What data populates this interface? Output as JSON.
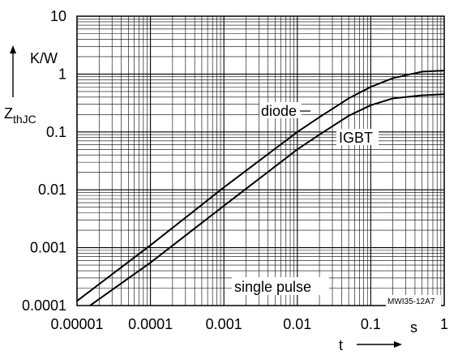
{
  "chart_data": {
    "type": "line",
    "x_scale": "log",
    "y_scale": "log",
    "xlim": [
      1e-05,
      1
    ],
    "ylim": [
      0.0001,
      10
    ],
    "grid": true,
    "xlabel": "t",
    "x_unit": "s",
    "ylabel_main": "Z",
    "ylabel_sub": "thJC",
    "y_unit": "K/W",
    "x_ticks": [
      "0.00001",
      "0.0001",
      "0.001",
      "0.01",
      "0.1",
      "1"
    ],
    "y_ticks": [
      "0.0001",
      "0.001",
      "0.01",
      "0.1",
      "1",
      "10"
    ],
    "series": [
      {
        "name": "diode",
        "x": [
          1e-05,
          0.0001,
          0.001,
          0.01,
          0.02,
          0.05,
          0.1,
          0.2,
          0.5,
          1
        ],
        "y": [
          0.00012,
          0.0011,
          0.011,
          0.1,
          0.18,
          0.38,
          0.6,
          0.85,
          1.1,
          1.15
        ]
      },
      {
        "name": "IGBT",
        "x": [
          1.5e-05,
          0.0001,
          0.001,
          0.01,
          0.02,
          0.05,
          0.1,
          0.2,
          0.5,
          1
        ],
        "y": [
          0.0001,
          0.00055,
          0.0053,
          0.05,
          0.09,
          0.19,
          0.29,
          0.38,
          0.43,
          0.45
        ]
      }
    ],
    "annotations": [
      "single pulse",
      "MWI35-12A7"
    ]
  }
}
